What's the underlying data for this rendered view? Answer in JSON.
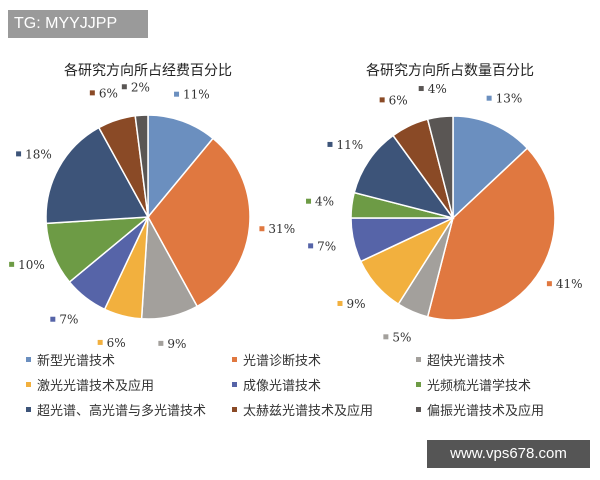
{
  "watermark_top": "TG: MYYJJPP",
  "watermark_bottom": "www.vps678.com",
  "chart_data": [
    {
      "type": "pie",
      "title": "各研究方向所占经费百分比",
      "categories": [
        "新型光谱技术",
        "光谱诊断技术",
        "超快光谱技术",
        "激光光谱技术及应用",
        "成像光谱技术",
        "光频梳光谱学技术",
        "超光谱、高光谱与多光谱技术",
        "太赫兹光谱技术及应用",
        "偏振光谱技术及应用"
      ],
      "values": [
        11,
        31,
        9,
        6,
        7,
        10,
        18,
        6,
        2
      ],
      "labels": [
        "11%",
        "31%",
        "9%",
        "6%",
        "7%",
        "10%",
        "18%",
        "6%",
        "2%"
      ]
    },
    {
      "type": "pie",
      "title": "各研究方向所占数量百分比",
      "categories": [
        "新型光谱技术",
        "光谱诊断技术",
        "超快光谱技术",
        "激光光谱技术及应用",
        "成像光谱技术",
        "光频梳光谱学技术",
        "超光谱、高光谱与多光谱技术",
        "太赫兹光谱技术及应用",
        "偏振光谱技术及应用"
      ],
      "values": [
        13,
        41,
        5,
        9,
        7,
        4,
        11,
        6,
        4
      ],
      "labels": [
        "13%",
        "41%",
        "5%",
        "9%",
        "7%",
        "4%",
        "11%",
        "6%",
        "4%"
      ]
    }
  ],
  "legend": {
    "placement": "bottom",
    "items": [
      "新型光谱技术",
      "光谱诊断技术",
      "超快光谱技术",
      "激光光谱技术及应用",
      "成像光谱技术",
      "光频梳光谱学技术",
      "超光谱、高光谱与多光谱技术",
      "太赫兹光谱技术及应用",
      "偏振光谱技术及应用"
    ]
  },
  "colors": [
    "#6b8fbf",
    "#e07840",
    "#a3a09c",
    "#f2b03e",
    "#5664a8",
    "#6d9b45",
    "#3d5479",
    "#8a4a26",
    "#5a5654"
  ]
}
